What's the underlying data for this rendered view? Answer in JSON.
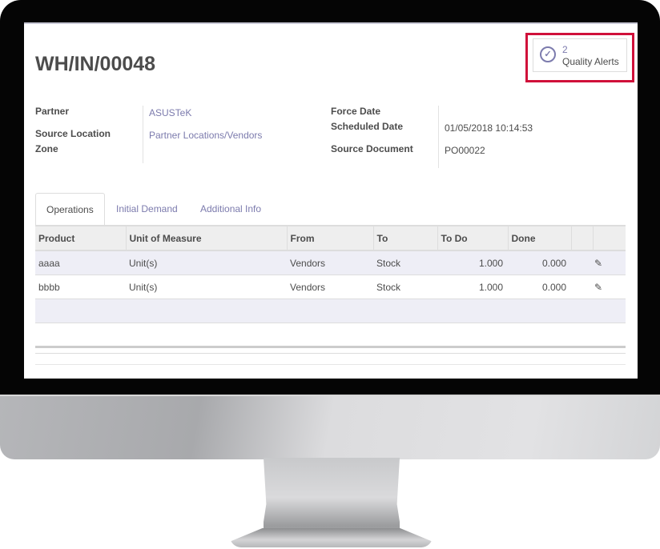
{
  "record": {
    "title": "WH/IN/00048"
  },
  "quality_alerts": {
    "count": "2",
    "label": "Quality Alerts",
    "icon": "check-circle-icon",
    "highlight_color": "#d0103a"
  },
  "fields_left": [
    {
      "label": "Partner",
      "value": "ASUSTeK"
    },
    {
      "label": "Source Location",
      "value": "Partner Locations/Vendors"
    },
    {
      "label": "Zone",
      "value": ""
    }
  ],
  "fields_right": [
    {
      "label": "Force Date",
      "value": ""
    },
    {
      "label": "Scheduled Date",
      "value": "01/05/2018 10:14:53"
    },
    {
      "label": "Source Document",
      "value": "PO00022"
    }
  ],
  "tabs": [
    {
      "label": "Operations",
      "active": true
    },
    {
      "label": "Initial Demand"
    },
    {
      "label": "Additional Info"
    }
  ],
  "table": {
    "columns": [
      "Product",
      "Unit of Measure",
      "From",
      "To",
      "To Do",
      "Done"
    ],
    "rows": [
      {
        "product": "aaaa",
        "uom": "Unit(s)",
        "from": "Vendors",
        "to": "Stock",
        "todo": "1.000",
        "done": "0.000"
      },
      {
        "product": "bbbb",
        "uom": "Unit(s)",
        "from": "Vendors",
        "to": "Stock",
        "todo": "1.000",
        "done": "0.000"
      }
    ]
  },
  "colors": {
    "link": "#7c7bad",
    "text": "#4c4c4c"
  }
}
